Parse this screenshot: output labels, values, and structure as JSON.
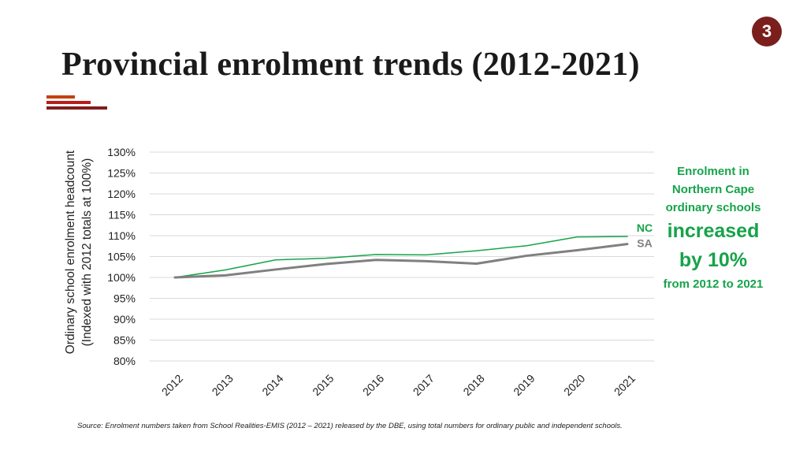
{
  "slide": {
    "number": "3",
    "title": "Provincial enrolment trends (2012-2021)"
  },
  "colors": {
    "badge": "#7a1f1b",
    "deco_bar_1": "#c2410c",
    "deco_bar_2": "#b91c1c",
    "deco_bar_3": "#7f1d1d",
    "nc_series": "#16a34a",
    "sa_series": "#808080",
    "callout_text": "#16a34a"
  },
  "chart_data": {
    "type": "line",
    "ylabel_line1": "Ordinary school enrolment headcount",
    "ylabel_line2": "(Indexed with 2012 totals at 100%)",
    "x": [
      "2012",
      "2013",
      "2014",
      "2015",
      "2016",
      "2017",
      "2018",
      "2019",
      "2020",
      "2021"
    ],
    "ylim": [
      80,
      130
    ],
    "yticks": [
      "130%",
      "125%",
      "120%",
      "115%",
      "110%",
      "105%",
      "100%",
      "95%",
      "90%",
      "85%",
      "80%"
    ],
    "grid": true,
    "series": [
      {
        "name": "NC",
        "color": "#16a34a",
        "values": [
          100,
          101.8,
          104.2,
          104.6,
          105.5,
          105.4,
          106.4,
          107.6,
          109.7,
          109.8
        ]
      },
      {
        "name": "SA",
        "color": "#808080",
        "values": [
          100,
          100.5,
          101.9,
          103.2,
          104.2,
          103.9,
          103.3,
          105.2,
          106.5,
          108.0
        ]
      }
    ]
  },
  "callout": {
    "line1": "Enrolment in",
    "line2": "Northern Cape",
    "line3": "ordinary schools",
    "big1": "increased",
    "big2": "by 10%",
    "line4": "from 2012 to 2021"
  },
  "source": "Source: Enrolment numbers taken from School Realities-EMIS (2012 – 2021) released by the DBE, using total numbers for ordinary public and independent schools."
}
